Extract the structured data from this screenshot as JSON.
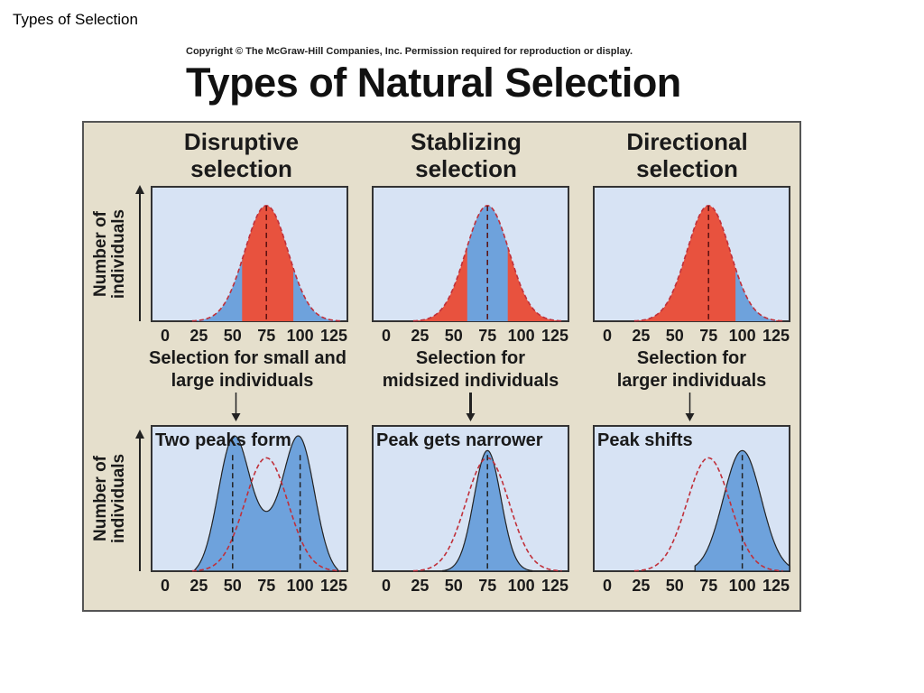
{
  "slide": {
    "title": "Types of Selection"
  },
  "figure": {
    "copyright": "Copyright © The McGraw-Hill Companies, Inc. Permission required for reproduction or display.",
    "heading": "Types of Natural Selection",
    "y_axis_label": [
      "Number of",
      "individuals"
    ],
    "ticks": [
      "0",
      "25",
      "50",
      "75",
      "100",
      "125"
    ],
    "colors": {
      "background": "#e5dfcc",
      "plot_bg": "#d7e3f4",
      "blue_fill": "#6ea2dc",
      "red_fill": "#e8523e",
      "dashed": "#c0303a"
    },
    "panels": [
      {
        "name": "disruptive",
        "heading": [
          "Disruptive",
          "selection"
        ],
        "caption": [
          "Selection for small and",
          "large individuals"
        ],
        "result_label": "Two peaks form",
        "selected_range": [
          25,
          125
        ],
        "selected_against": [
          57,
          95
        ],
        "after_peaks": [
          50,
          100
        ],
        "original_peak": 75
      },
      {
        "name": "stabilizing",
        "heading": [
          "Stablizing",
          "selection"
        ],
        "caption": [
          "Selection for",
          "midsized individuals"
        ],
        "result_label": "Peak gets narrower",
        "selected_range": [
          60,
          90
        ],
        "after_peaks": [
          75
        ],
        "original_peak": 75
      },
      {
        "name": "directional",
        "heading": [
          "Directional",
          "selection"
        ],
        "caption": [
          "Selection for",
          "larger individuals"
        ],
        "result_label": "Peak shifts",
        "selected_range": [
          95,
          125
        ],
        "after_peaks": [
          100
        ],
        "original_peak": 75
      }
    ]
  }
}
